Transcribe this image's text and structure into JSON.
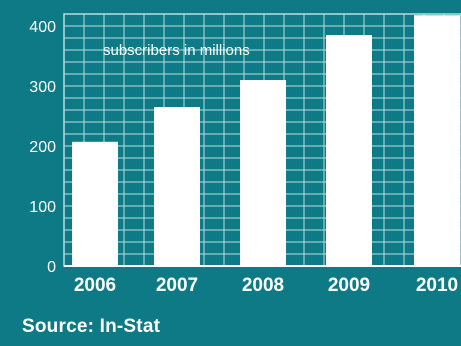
{
  "colors": {
    "background": "#0e7a86",
    "grid": "#b7dde2",
    "bar": "#ffffff",
    "text": "#ffffff"
  },
  "source": "Source: In-Stat",
  "chart_data": {
    "type": "bar",
    "title": "",
    "annotation": "subscribers in millions",
    "xlabel": "",
    "ylabel": "",
    "categories": [
      "2006",
      "2007",
      "2008",
      "2009",
      "2010"
    ],
    "values": [
      207,
      265,
      310,
      385,
      418
    ],
    "ylim": [
      0,
      420
    ],
    "yticks": [
      0,
      100,
      200,
      300,
      400
    ],
    "grid": true,
    "legend": "none"
  }
}
